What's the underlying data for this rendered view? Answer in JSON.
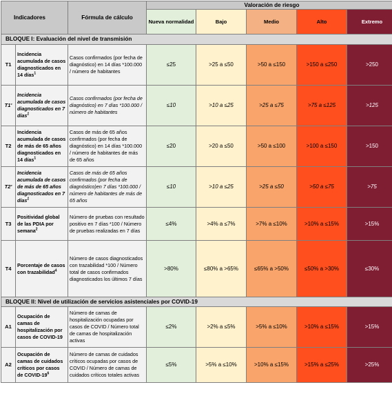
{
  "header": {
    "indicadores": "Indicadores",
    "formula": "Fórmula de cálculo",
    "valoracion": "Valoración de riesgo",
    "levels": [
      "Nueva normalidad",
      "Bajo",
      "Medio",
      "Alto",
      "Extremo"
    ]
  },
  "bloque1": {
    "title": "BLOQUE I: Evaluación del nivel de transmisión",
    "rows": [
      {
        "code": "T1",
        "name": "Incidencia acumulada de casos diagnosticados en 14 días",
        "sup": "1",
        "formula": "Casos confirmados (por fecha de diagnóstico) en 14 días *100.000 / número de habitantes",
        "values": [
          "≤25",
          ">25 a ≤50",
          ">50 a ≤150",
          ">150 a ≤250",
          ">250"
        ],
        "italic": false
      },
      {
        "code": "T1'",
        "name": "Incidencia acumulada de casos diagnosticados en 7 días",
        "sup": "1",
        "formula": "Casos confirmados (por fecha de diagnóstico) en 7 días *100.000 / número de habitantes",
        "values": [
          "≤10",
          ">10 a ≤25",
          ">25 a ≤75",
          ">75 a ≤125",
          ">125"
        ],
        "italic": true
      },
      {
        "code": "T2",
        "name": "Incidencia acumulada de casos de más de 65 años diagnosticados en 14 días",
        "sup": "1",
        "formula": "Casos de más de 65 años confirmados (por fecha de diagnóstico) en 14 días *100.000 / número de habitantes de más de 65 años",
        "values": [
          "≤20",
          ">20 a ≤50",
          ">50 a ≤100",
          ">100 a ≤150",
          ">150"
        ],
        "italic": false
      },
      {
        "code": "T2'",
        "name": "Incidencia acumulada de casos de más de 65 años diagnosticados en 7 días",
        "sup": "1",
        "formula": "Casos de más de 65 años confirmados (por fecha de diagnóstico)en 7 días *100.000 / número de habitantes de más de 65 años",
        "values": [
          "≤10",
          ">10 a ≤25",
          ">25 a ≤50",
          ">50 a ≤75",
          ">75"
        ],
        "italic": true
      },
      {
        "code": "T3",
        "name": "Positividad global de las PDIA por semana",
        "sup": "2",
        "formula": "Número de pruebas con resultado positivo en 7 días *100 / Número de pruebas realizadas en 7 días",
        "values": [
          "≤4%",
          ">4% a ≤7%",
          ">7% a ≤10%",
          ">10% a ≤15%",
          ">15%"
        ],
        "italic": false
      },
      {
        "code": "T4",
        "name": "Porcentaje de casos con trazabilidad",
        "sup": "4",
        "formula": "Número de casos diagnosticados con trazabilidad *100 / Número total de casos confirmados diagnosticados los últimos 7 días",
        "values": [
          ">80%",
          "≤80% a >65%",
          "≤65% a >50%",
          "≤50% a >30%",
          "≤30%"
        ],
        "italic": false
      }
    ]
  },
  "bloque2": {
    "title": "BLOQUE II: Nivel de utilización de servicios asistenciales por COVID-19",
    "rows": [
      {
        "code": "A1",
        "name": "Ocupación de camas de hospitalización por casos de COVID-19",
        "sup": "",
        "formula": "Número de camas de hospitalización ocupadas por casos de COVID / Número total de camas de hospitalización activas",
        "values": [
          "≤2%",
          ">2% a ≤5%",
          ">5% a ≤10%",
          ">10% a ≤15%",
          ">15%"
        ],
        "italic": false
      },
      {
        "code": "A2",
        "name": "Ocupación de camas de cuidados críticos por casos de COVID-19",
        "sup": "6",
        "formula": "Número de camas de cuidados críticos ocupadas por casos de COVID / Número de camas de cuidados críticos totales activas",
        "values": [
          "≤5%",
          ">5% a ≤10%",
          ">10% a ≤15%",
          ">15% a ≤25%",
          ">25%"
        ],
        "italic": false
      }
    ]
  }
}
